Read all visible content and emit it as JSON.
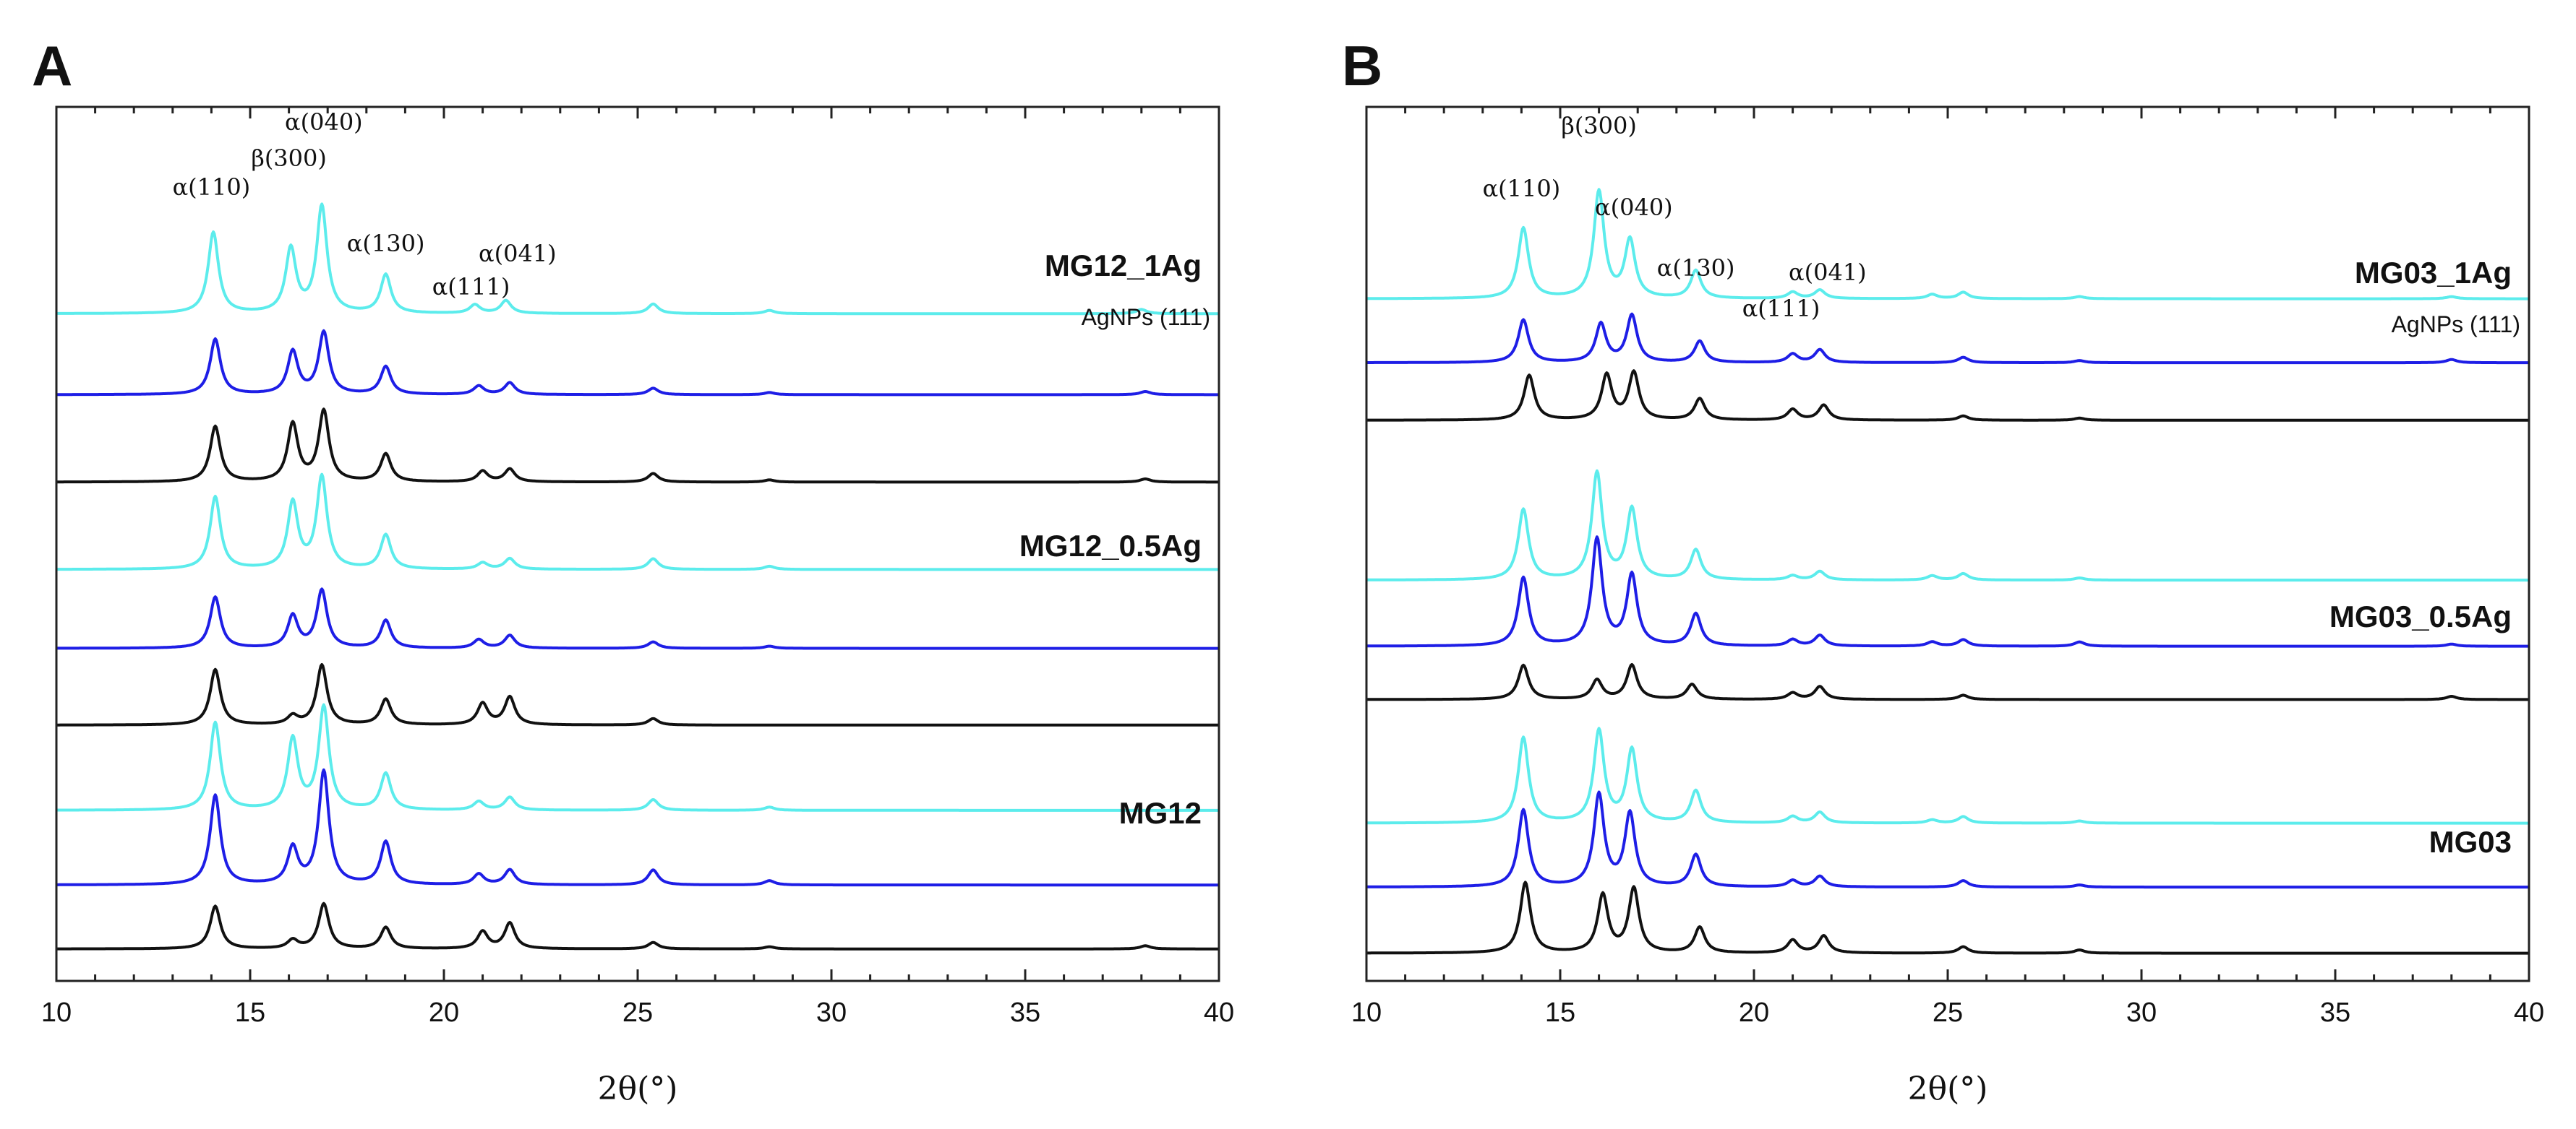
{
  "chart_data": [
    {
      "type": "line",
      "panel": "A",
      "xlabel": "2θ(°)",
      "ylabel": "",
      "xlim": [
        10,
        40
      ],
      "xticks": [
        10,
        15,
        20,
        25,
        30,
        35,
        40
      ],
      "ticks_unit": "2θ (degrees)",
      "peak_labels": [
        {
          "text": "α(110)",
          "x": 14.0
        },
        {
          "text": "β(300)",
          "x": 16.0
        },
        {
          "text": "α(040)",
          "x": 16.9
        },
        {
          "text": "α(130)",
          "x": 18.5
        },
        {
          "text": "α(111)",
          "x": 20.7
        },
        {
          "text": "α(041)",
          "x": 21.9
        }
      ],
      "groups": [
        {
          "label": "MG12_1Ag",
          "annotation": "AgNPs (111)",
          "series": [
            {
              "color": "#5cecec",
              "baseline": 21.3,
              "peaks": [
                [
                  14.05,
                  3.8
                ],
                [
                  16.05,
                  3.0
                ],
                [
                  16.85,
                  5.0
                ],
                [
                  18.5,
                  1.8
                ],
                [
                  20.8,
                  0.4
                ],
                [
                  21.6,
                  0.6
                ],
                [
                  25.4,
                  0.45
                ],
                [
                  28.4,
                  0.15
                ],
                [
                  38.0,
                  0.2
                ]
              ]
            },
            {
              "color": "#1e1ee6",
              "baseline": 17.5,
              "peaks": [
                [
                  14.1,
                  2.6
                ],
                [
                  16.1,
                  2.0
                ],
                [
                  16.9,
                  2.9
                ],
                [
                  18.5,
                  1.3
                ],
                [
                  20.9,
                  0.4
                ],
                [
                  21.7,
                  0.55
                ],
                [
                  25.4,
                  0.3
                ],
                [
                  28.4,
                  0.1
                ],
                [
                  38.1,
                  0.15
                ]
              ]
            },
            {
              "color": "#111111",
              "baseline": 13.4,
              "peaks": [
                [
                  14.1,
                  2.6
                ],
                [
                  16.1,
                  2.7
                ],
                [
                  16.9,
                  3.3
                ],
                [
                  18.5,
                  1.3
                ],
                [
                  21.0,
                  0.5
                ],
                [
                  21.7,
                  0.6
                ],
                [
                  25.4,
                  0.4
                ],
                [
                  28.4,
                  0.1
                ],
                [
                  38.1,
                  0.15
                ]
              ]
            }
          ]
        },
        {
          "label": "MG12_0.5Ag",
          "series": [
            {
              "color": "#5cecec",
              "baseline": 9.3,
              "peaks": [
                [
                  14.1,
                  3.4
                ],
                [
                  16.1,
                  3.1
                ],
                [
                  16.85,
                  4.3
                ],
                [
                  18.5,
                  1.6
                ],
                [
                  21.0,
                  0.3
                ],
                [
                  21.7,
                  0.5
                ],
                [
                  25.4,
                  0.5
                ],
                [
                  28.4,
                  0.15
                ]
              ]
            },
            {
              "color": "#1e1ee6",
              "baseline": 5.6,
              "peaks": [
                [
                  14.1,
                  2.4
                ],
                [
                  16.1,
                  1.5
                ],
                [
                  16.85,
                  2.7
                ],
                [
                  18.5,
                  1.3
                ],
                [
                  20.9,
                  0.4
                ],
                [
                  21.7,
                  0.6
                ],
                [
                  25.4,
                  0.3
                ],
                [
                  28.4,
                  0.1
                ]
              ]
            },
            {
              "color": "#111111",
              "baseline": 2.0,
              "peaks": [
                [
                  14.1,
                  2.6
                ],
                [
                  16.1,
                  0.4
                ],
                [
                  16.85,
                  2.8
                ],
                [
                  18.5,
                  1.2
                ],
                [
                  21.0,
                  1.0
                ],
                [
                  21.7,
                  1.3
                ],
                [
                  25.4,
                  0.3
                ]
              ]
            }
          ]
        },
        {
          "label": "MG12",
          "series": [
            {
              "color": "#5cecec",
              "baseline": -2.0,
              "peaks": [
                [
                  14.1,
                  4.1
                ],
                [
                  16.1,
                  3.3
                ],
                [
                  16.9,
                  4.8
                ],
                [
                  18.5,
                  1.7
                ],
                [
                  20.9,
                  0.4
                ],
                [
                  21.7,
                  0.6
                ],
                [
                  25.4,
                  0.5
                ],
                [
                  28.4,
                  0.15
                ]
              ]
            },
            {
              "color": "#1e1ee6",
              "baseline": -5.5,
              "peaks": [
                [
                  14.1,
                  4.2
                ],
                [
                  16.1,
                  1.7
                ],
                [
                  16.9,
                  5.3
                ],
                [
                  18.5,
                  2.0
                ],
                [
                  20.9,
                  0.5
                ],
                [
                  21.7,
                  0.7
                ],
                [
                  25.4,
                  0.7
                ],
                [
                  28.4,
                  0.2
                ]
              ]
            },
            {
              "color": "#111111",
              "baseline": -8.5,
              "peaks": [
                [
                  14.1,
                  2.0
                ],
                [
                  16.1,
                  0.4
                ],
                [
                  16.9,
                  2.1
                ],
                [
                  18.5,
                  1.0
                ],
                [
                  21.0,
                  0.8
                ],
                [
                  21.7,
                  1.2
                ],
                [
                  25.4,
                  0.3
                ],
                [
                  28.4,
                  0.1
                ],
                [
                  38.1,
                  0.15
                ]
              ]
            }
          ]
        }
      ]
    },
    {
      "type": "line",
      "panel": "B",
      "xlabel": "2θ(°)",
      "ylabel": "",
      "xlim": [
        10,
        40
      ],
      "xticks": [
        10,
        15,
        20,
        25,
        30,
        35,
        40
      ],
      "peak_labels": [
        {
          "text": "α(110)",
          "x": 14.0
        },
        {
          "text": "β(300)",
          "x": 16.0
        },
        {
          "text": "α(040)",
          "x": 16.9
        },
        {
          "text": "α(130)",
          "x": 18.5
        },
        {
          "text": "α(111)",
          "x": 20.7
        },
        {
          "text": "α(041)",
          "x": 21.9
        }
      ],
      "groups": [
        {
          "label": "MG03_1Ag",
          "annotation": "AgNPs (111)",
          "series": [
            {
              "color": "#5cecec",
              "baseline": 22.0,
              "peaks": [
                [
                  14.05,
                  3.3
                ],
                [
                  16.0,
                  5.0
                ],
                [
                  16.8,
                  2.7
                ],
                [
                  18.5,
                  1.3
                ],
                [
                  21.0,
                  0.3
                ],
                [
                  21.7,
                  0.4
                ],
                [
                  24.6,
                  0.2
                ],
                [
                  25.4,
                  0.3
                ],
                [
                  28.4,
                  0.1
                ],
                [
                  38.0,
                  0.1
                ]
              ]
            },
            {
              "color": "#1e1ee6",
              "baseline": 19.0,
              "peaks": [
                [
                  14.05,
                  2.0
                ],
                [
                  16.05,
                  1.8
                ],
                [
                  16.85,
                  2.2
                ],
                [
                  18.6,
                  1.0
                ],
                [
                  21.0,
                  0.4
                ],
                [
                  21.7,
                  0.6
                ],
                [
                  25.4,
                  0.25
                ],
                [
                  28.4,
                  0.1
                ],
                [
                  38.0,
                  0.15
                ]
              ]
            },
            {
              "color": "#111111",
              "baseline": 16.3,
              "peaks": [
                [
                  14.2,
                  2.1
                ],
                [
                  16.2,
                  2.1
                ],
                [
                  16.9,
                  2.2
                ],
                [
                  18.6,
                  1.0
                ],
                [
                  21.0,
                  0.5
                ],
                [
                  21.8,
                  0.7
                ],
                [
                  25.4,
                  0.2
                ],
                [
                  28.4,
                  0.1
                ]
              ]
            }
          ]
        },
        {
          "label": "MG03_0.5Ag",
          "series": [
            {
              "color": "#5cecec",
              "baseline": 8.8,
              "peaks": [
                [
                  14.05,
                  3.3
                ],
                [
                  15.95,
                  5.0
                ],
                [
                  16.85,
                  3.3
                ],
                [
                  18.5,
                  1.4
                ],
                [
                  21.0,
                  0.2
                ],
                [
                  21.7,
                  0.4
                ],
                [
                  24.6,
                  0.2
                ],
                [
                  25.4,
                  0.3
                ],
                [
                  28.4,
                  0.1
                ]
              ]
            },
            {
              "color": "#1e1ee6",
              "baseline": 5.7,
              "peaks": [
                [
                  14.05,
                  3.2
                ],
                [
                  15.95,
                  5.0
                ],
                [
                  16.85,
                  3.3
                ],
                [
                  18.5,
                  1.5
                ],
                [
                  21.0,
                  0.3
                ],
                [
                  21.7,
                  0.5
                ],
                [
                  24.6,
                  0.2
                ],
                [
                  25.4,
                  0.3
                ],
                [
                  28.4,
                  0.2
                ],
                [
                  38.0,
                  0.1
                ]
              ]
            },
            {
              "color": "#111111",
              "baseline": 3.2,
              "peaks": [
                [
                  14.05,
                  1.6
                ],
                [
                  15.95,
                  0.9
                ],
                [
                  16.85,
                  1.6
                ],
                [
                  18.4,
                  0.7
                ],
                [
                  21.0,
                  0.3
                ],
                [
                  21.7,
                  0.6
                ],
                [
                  25.4,
                  0.2
                ],
                [
                  38.0,
                  0.15
                ]
              ]
            }
          ]
        },
        {
          "label": "MG03",
          "series": [
            {
              "color": "#5cecec",
              "baseline": -2.6,
              "peaks": [
                [
                  14.05,
                  4.0
                ],
                [
                  16.0,
                  4.3
                ],
                [
                  16.85,
                  3.4
                ],
                [
                  18.5,
                  1.5
                ],
                [
                  21.0,
                  0.3
                ],
                [
                  21.7,
                  0.5
                ],
                [
                  24.6,
                  0.15
                ],
                [
                  25.4,
                  0.3
                ],
                [
                  28.4,
                  0.1
                ]
              ]
            },
            {
              "color": "#1e1ee6",
              "baseline": -5.6,
              "peaks": [
                [
                  14.05,
                  3.6
                ],
                [
                  16.0,
                  4.3
                ],
                [
                  16.8,
                  3.4
                ],
                [
                  18.5,
                  1.5
                ],
                [
                  21.0,
                  0.3
                ],
                [
                  21.7,
                  0.5
                ],
                [
                  25.4,
                  0.3
                ],
                [
                  28.4,
                  0.1
                ]
              ]
            },
            {
              "color": "#111111",
              "baseline": -8.7,
              "peaks": [
                [
                  14.1,
                  3.3
                ],
                [
                  16.1,
                  2.7
                ],
                [
                  16.9,
                  3.0
                ],
                [
                  18.6,
                  1.2
                ],
                [
                  21.0,
                  0.6
                ],
                [
                  21.8,
                  0.8
                ],
                [
                  25.4,
                  0.3
                ],
                [
                  28.4,
                  0.15
                ]
              ]
            }
          ]
        }
      ]
    }
  ]
}
